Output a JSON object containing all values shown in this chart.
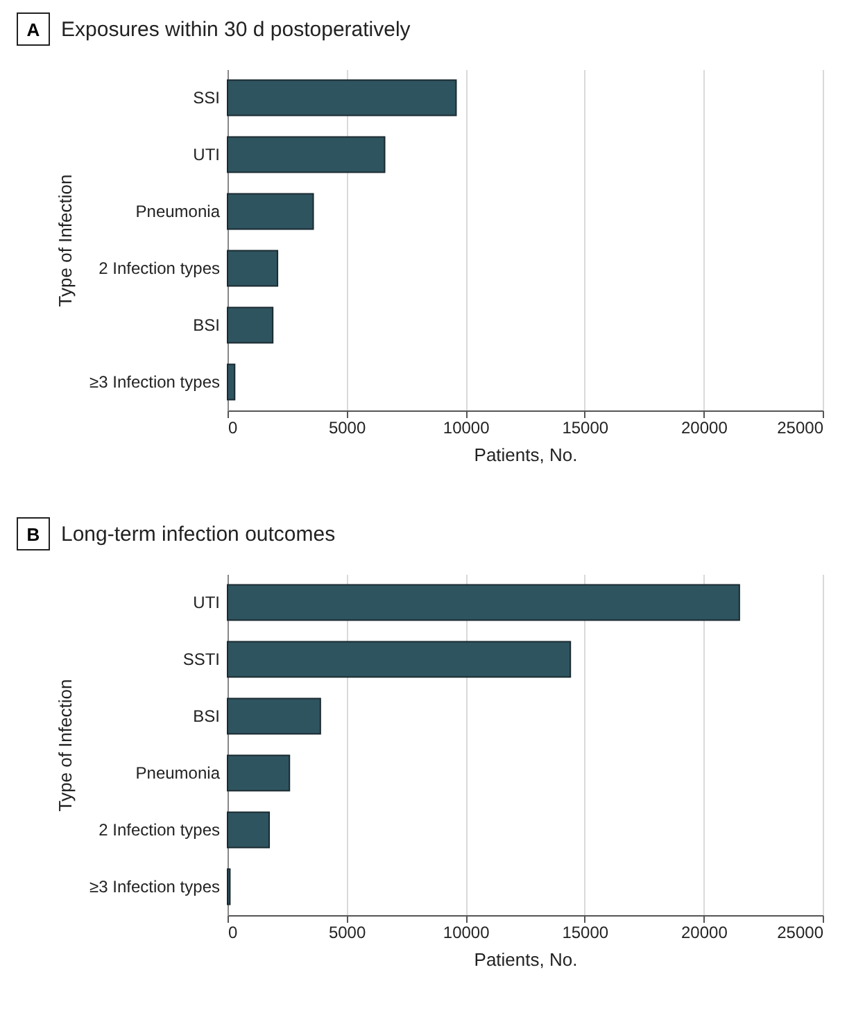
{
  "chart_data": [
    {
      "type": "bar",
      "orientation": "horizontal",
      "annotations": [
        "A"
      ],
      "title": "Exposures within 30 d postoperatively",
      "xlabel": "Patients, No.",
      "ylabel": "Type of Infection",
      "categories": [
        "SSI",
        "UTI",
        "Pneumonia",
        "2 Infection types",
        "BSI",
        "≥3 Infection types"
      ],
      "values": [
        9600,
        6600,
        3600,
        2100,
        1900,
        300
      ],
      "color": "#2e5460",
      "xlim": [
        0,
        25000
      ],
      "xticks": [
        0,
        5000,
        10000,
        15000,
        20000,
        25000
      ],
      "grid": "x"
    },
    {
      "type": "bar",
      "orientation": "horizontal",
      "annotations": [
        "B"
      ],
      "title": "Long-term infection outcomes",
      "xlabel": "Patients, No.",
      "ylabel": "Type of Infection",
      "categories": [
        "UTI",
        "SSTI",
        "BSI",
        "Pneumonia",
        "2 Infection types",
        "≥3 Infection types"
      ],
      "values": [
        21500,
        14400,
        3900,
        2600,
        1750,
        100
      ],
      "color": "#2e5460",
      "xlim": [
        0,
        25000
      ],
      "xticks": [
        0,
        5000,
        10000,
        15000,
        20000,
        25000
      ],
      "grid": "x"
    }
  ]
}
